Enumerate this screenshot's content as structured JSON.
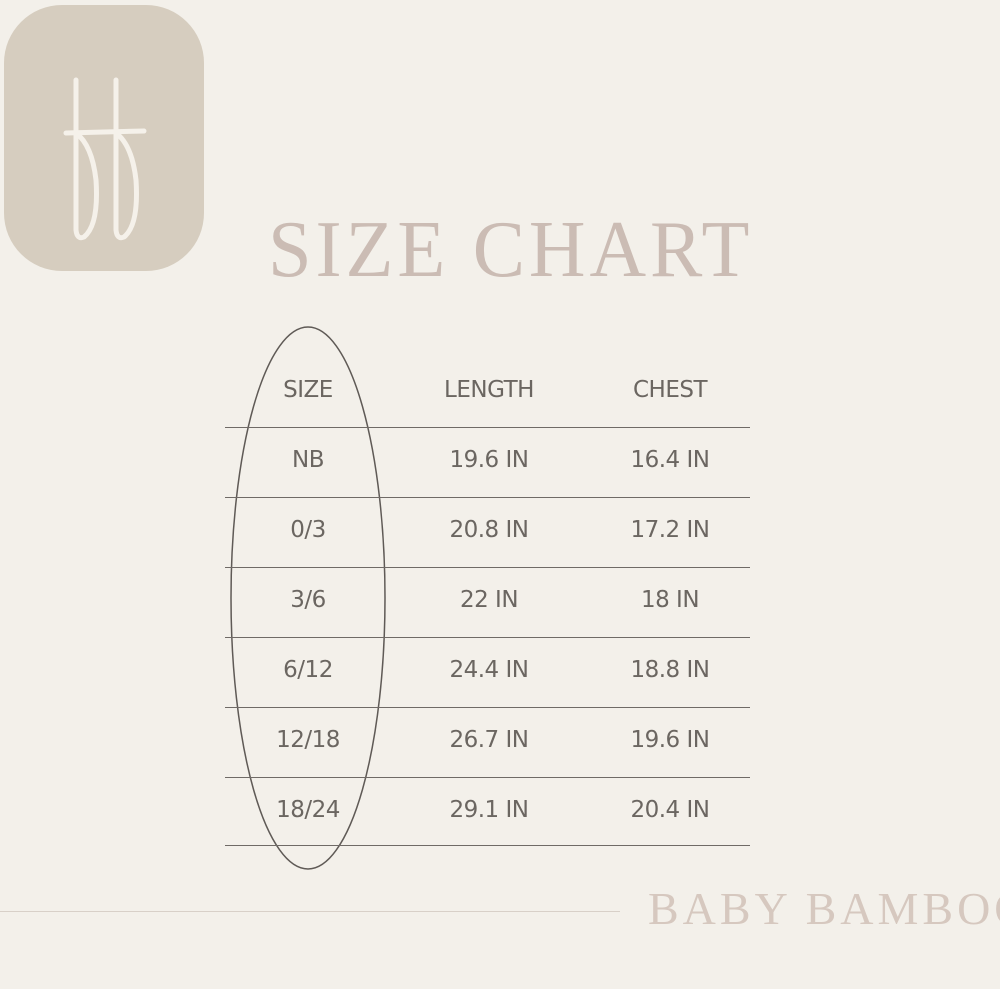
{
  "logo": {
    "text": "bb",
    "background": "#d6cdbf"
  },
  "title": "SIZE CHART",
  "table": {
    "headers": [
      "SIZE",
      "LENGTH",
      "CHEST"
    ],
    "rows": [
      [
        "NB",
        "19.6 IN",
        "16.4 IN"
      ],
      [
        "0/3",
        "20.8 IN",
        "17.2 IN"
      ],
      [
        "3/6",
        "22 IN",
        "18 IN"
      ],
      [
        "6/12",
        "24.4 IN",
        "18.8 IN"
      ],
      [
        "12/18",
        "26.7 IN",
        "19.6 IN"
      ],
      [
        "18/24",
        "29.1 IN",
        "20.4 IN"
      ]
    ]
  },
  "brand": "BABY BAMBOO",
  "colors": {
    "background": "#f3f0ea",
    "title": "#cbbcb4",
    "text": "#6b6661",
    "brand": "#d6c8bf"
  }
}
